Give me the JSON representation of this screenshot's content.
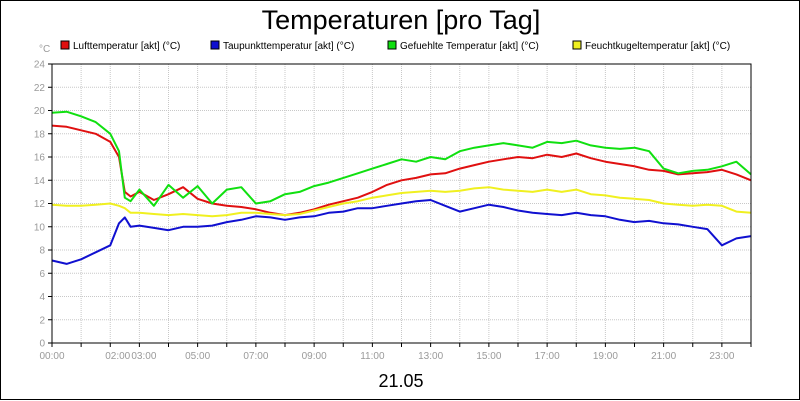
{
  "chart_data": {
    "type": "line",
    "title": "Temperaturen [pro Tag]",
    "date_label": "21.05",
    "ylabel": "°C",
    "ylim": [
      0,
      24
    ],
    "yticks": [
      0,
      2,
      4,
      6,
      8,
      10,
      12,
      14,
      16,
      18,
      20,
      22,
      24
    ],
    "xlim": [
      0,
      24
    ],
    "xticks": [
      {
        "value": 0,
        "label": "00:00"
      },
      {
        "value": 2,
        "label": "02:00"
      },
      {
        "value": 3,
        "label": "03:00"
      },
      {
        "value": 5,
        "label": "05:00"
      },
      {
        "value": 7,
        "label": "07:00"
      },
      {
        "value": 9,
        "label": "09:00"
      },
      {
        "value": 11,
        "label": "11:00"
      },
      {
        "value": 13,
        "label": "13:00"
      },
      {
        "value": 15,
        "label": "15:00"
      },
      {
        "value": 17,
        "label": "17:00"
      },
      {
        "value": 19,
        "label": "19:00"
      },
      {
        "value": 21,
        "label": "21:00"
      },
      {
        "value": 23,
        "label": "23:00"
      }
    ],
    "grid": true,
    "series": [
      {
        "name": "Lufttemperatur [akt] (°C)",
        "color": "#e01010",
        "x": [
          0,
          0.5,
          1,
          1.5,
          2,
          2.3,
          2.5,
          2.7,
          3,
          3.5,
          4,
          4.5,
          5,
          5.5,
          6,
          6.5,
          7,
          7.5,
          8,
          8.5,
          9,
          9.5,
          10,
          10.5,
          11,
          11.5,
          12,
          12.5,
          13,
          13.5,
          14,
          14.5,
          15,
          15.5,
          16,
          16.5,
          17,
          17.5,
          18,
          18.5,
          19,
          19.5,
          20,
          20.5,
          21,
          21.5,
          22,
          22.5,
          23,
          23.5,
          24
        ],
        "values": [
          18.7,
          18.6,
          18.3,
          18.0,
          17.3,
          16.0,
          13.0,
          12.6,
          13.0,
          12.3,
          12.8,
          13.4,
          12.4,
          12.0,
          11.8,
          11.7,
          11.5,
          11.2,
          11.0,
          11.2,
          11.5,
          11.9,
          12.2,
          12.5,
          13.0,
          13.6,
          14.0,
          14.2,
          14.5,
          14.6,
          15.0,
          15.3,
          15.6,
          15.8,
          16.0,
          15.9,
          16.2,
          16.0,
          16.3,
          15.9,
          15.6,
          15.4,
          15.2,
          14.9,
          14.8,
          14.5,
          14.6,
          14.7,
          14.9,
          14.5,
          14.0
        ]
      },
      {
        "name": "Taupunkttemperatur [akt] (°C)",
        "color": "#1010d0",
        "x": [
          0,
          0.5,
          1,
          1.5,
          2,
          2.3,
          2.5,
          2.7,
          3,
          3.5,
          4,
          4.5,
          5,
          5.5,
          6,
          6.5,
          7,
          7.5,
          8,
          8.5,
          9,
          9.5,
          10,
          10.5,
          11,
          11.5,
          12,
          12.5,
          13,
          13.5,
          14,
          14.5,
          15,
          15.5,
          16,
          16.5,
          17,
          17.5,
          18,
          18.5,
          19,
          19.5,
          20,
          20.5,
          21,
          21.5,
          22,
          22.5,
          23,
          23.5,
          24
        ],
        "values": [
          7.1,
          6.8,
          7.2,
          7.8,
          8.4,
          10.3,
          10.8,
          10.0,
          10.1,
          9.9,
          9.7,
          10.0,
          10.0,
          10.1,
          10.4,
          10.6,
          10.9,
          10.8,
          10.6,
          10.8,
          10.9,
          11.2,
          11.3,
          11.6,
          11.6,
          11.8,
          12.0,
          12.2,
          12.3,
          11.8,
          11.3,
          11.6,
          11.9,
          11.7,
          11.4,
          11.2,
          11.1,
          11.0,
          11.2,
          11.0,
          10.9,
          10.6,
          10.4,
          10.5,
          10.3,
          10.2,
          10.0,
          9.8,
          8.4,
          9.0,
          9.2
        ]
      },
      {
        "name": "Gefuehlte Temperatur [akt] (°C)",
        "color": "#10e010",
        "x": [
          0,
          0.5,
          1,
          1.5,
          2,
          2.3,
          2.5,
          2.7,
          3,
          3.5,
          4,
          4.5,
          5,
          5.5,
          6,
          6.5,
          7,
          7.5,
          8,
          8.5,
          9,
          9.5,
          10,
          10.5,
          11,
          11.5,
          12,
          12.5,
          13,
          13.5,
          14,
          14.5,
          15,
          15.5,
          16,
          16.5,
          17,
          17.5,
          18,
          18.5,
          19,
          19.5,
          20,
          20.5,
          21,
          21.5,
          22,
          22.5,
          23,
          23.5,
          24
        ],
        "values": [
          19.8,
          19.9,
          19.5,
          19.0,
          18.0,
          16.5,
          12.5,
          12.2,
          13.2,
          11.8,
          13.6,
          12.5,
          13.5,
          12.0,
          13.2,
          13.4,
          12.0,
          12.2,
          12.8,
          13.0,
          13.5,
          13.8,
          14.2,
          14.6,
          15.0,
          15.4,
          15.8,
          15.6,
          16.0,
          15.8,
          16.5,
          16.8,
          17.0,
          17.2,
          17.0,
          16.8,
          17.3,
          17.2,
          17.4,
          17.0,
          16.8,
          16.7,
          16.8,
          16.5,
          15.0,
          14.6,
          14.8,
          14.9,
          15.2,
          15.6,
          14.5
        ]
      },
      {
        "name": "Feuchtkugeltemperatur [akt] (°C)",
        "color": "#f0f020",
        "x": [
          0,
          0.5,
          1,
          1.5,
          2,
          2.3,
          2.5,
          2.7,
          3,
          3.5,
          4,
          4.5,
          5,
          5.5,
          6,
          6.5,
          7,
          7.5,
          8,
          8.5,
          9,
          9.5,
          10,
          10.5,
          11,
          11.5,
          12,
          12.5,
          13,
          13.5,
          14,
          14.5,
          15,
          15.5,
          16,
          16.5,
          17,
          17.5,
          18,
          18.5,
          19,
          19.5,
          20,
          20.5,
          21,
          21.5,
          22,
          22.5,
          23,
          23.5,
          24
        ],
        "values": [
          11.9,
          11.8,
          11.8,
          11.9,
          12.0,
          11.8,
          11.6,
          11.2,
          11.2,
          11.1,
          11.0,
          11.1,
          11.0,
          10.9,
          11.0,
          11.2,
          11.2,
          11.1,
          11.0,
          11.1,
          11.4,
          11.7,
          12.0,
          12.2,
          12.5,
          12.7,
          12.9,
          13.0,
          13.1,
          13.0,
          13.1,
          13.3,
          13.4,
          13.2,
          13.1,
          13.0,
          13.2,
          13.0,
          13.2,
          12.8,
          12.7,
          12.5,
          12.4,
          12.3,
          12.0,
          11.9,
          11.8,
          11.9,
          11.8,
          11.3,
          11.2
        ]
      }
    ]
  }
}
